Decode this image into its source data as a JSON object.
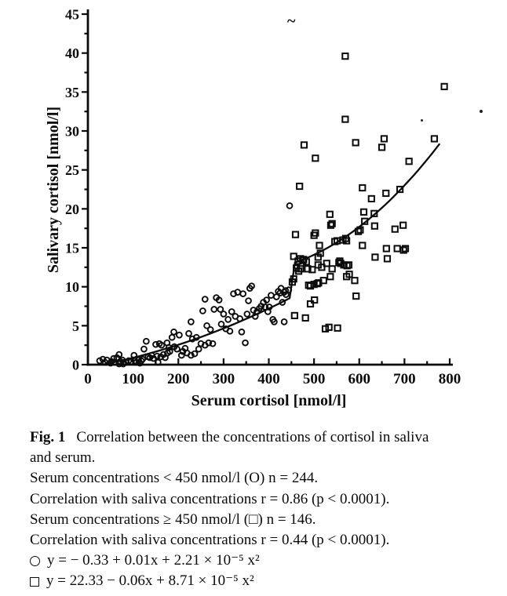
{
  "chart_data": {
    "type": "scatter",
    "title": "",
    "xlabel": "Serum cortisol [nmol/l]",
    "ylabel": "Salivary cortisol [nmol/l]",
    "xlim": [
      0,
      800
    ],
    "ylim": [
      0,
      45
    ],
    "x_major_step": 100,
    "x_minor_step": 50,
    "y_major_step": 5,
    "y_minor_step": 2.5,
    "grid": "off",
    "legend": "none",
    "marker_color": "#0b0b0b",
    "line_color": "#0b0b0b",
    "series": [
      {
        "name": "serum_lt_450",
        "label": "Serum concentrations < 450 nmol/l",
        "marker": "circle",
        "n": 244,
        "r": "0.86",
        "p": "p < 0.0001",
        "points": [
          [
            26,
            0.5
          ],
          [
            33,
            0.7
          ],
          [
            38,
            0.3
          ],
          [
            42,
            0.6
          ],
          [
            50,
            0.2
          ],
          [
            52,
            0.4
          ],
          [
            57,
            0.8
          ],
          [
            60,
            0.3
          ],
          [
            64,
            0.9
          ],
          [
            69,
            1.3
          ],
          [
            69,
            0.1
          ],
          [
            72,
            0.4
          ],
          [
            76,
            0.6
          ],
          [
            78,
            0.1
          ],
          [
            84,
            0.3
          ],
          [
            90,
            0.5
          ],
          [
            96,
            0.4
          ],
          [
            102,
            1.2
          ],
          [
            104,
            0.5
          ],
          [
            107,
            0.3
          ],
          [
            112,
            0.6
          ],
          [
            115,
            0.2
          ],
          [
            118,
            0.5
          ],
          [
            121,
            0.7
          ],
          [
            124,
            2.0
          ],
          [
            129,
            3.0
          ],
          [
            133,
            1.0
          ],
          [
            137,
            0.9
          ],
          [
            141,
            1.2
          ],
          [
            145,
            0.8
          ],
          [
            150,
            2.6
          ],
          [
            153,
            1.1
          ],
          [
            155,
            0.3
          ],
          [
            158,
            2.7
          ],
          [
            161,
            1.0
          ],
          [
            163,
            2.5
          ],
          [
            167,
            1.3
          ],
          [
            171,
            0.9
          ],
          [
            175,
            2.8
          ],
          [
            176,
            1.5
          ],
          [
            179,
            2.2
          ],
          [
            181,
            1.7
          ],
          [
            186,
            3.5
          ],
          [
            190,
            4.2
          ],
          [
            191,
            2.3
          ],
          [
            197,
            2.0
          ],
          [
            202,
            3.8
          ],
          [
            207,
            1.2
          ],
          [
            210,
            1.7
          ],
          [
            215,
            2.1
          ],
          [
            219,
            1.5
          ],
          [
            223,
            4.0
          ],
          [
            228,
            5.5
          ],
          [
            228,
            1.2
          ],
          [
            231,
            3.3
          ],
          [
            236,
            1.4
          ],
          [
            240,
            3.5
          ],
          [
            245,
            2.0
          ],
          [
            250,
            2.7
          ],
          [
            254,
            6.9
          ],
          [
            259,
            8.4
          ],
          [
            259,
            2.5
          ],
          [
            263,
            5.0
          ],
          [
            267,
            2.8
          ],
          [
            271,
            4.5
          ],
          [
            276,
            2.7
          ],
          [
            279,
            7.1
          ],
          [
            284,
            8.6
          ],
          [
            290,
            8.3
          ],
          [
            293,
            7.1
          ],
          [
            295,
            5.2
          ],
          [
            300,
            6.5
          ],
          [
            305,
            4.6
          ],
          [
            310,
            5.8
          ],
          [
            314,
            4.3
          ],
          [
            318,
            6.8
          ],
          [
            322,
            9.1
          ],
          [
            326,
            6.2
          ],
          [
            331,
            9.3
          ],
          [
            336,
            5.9
          ],
          [
            340,
            4.2
          ],
          [
            343,
            9.1
          ],
          [
            348,
            2.8
          ],
          [
            352,
            6.5
          ],
          [
            355,
            8.2
          ],
          [
            358,
            9.8
          ],
          [
            362,
            10.1
          ],
          [
            366,
            7.0
          ],
          [
            370,
            6.2
          ],
          [
            374,
            6.8
          ],
          [
            379,
            7.2
          ],
          [
            383,
            7.5
          ],
          [
            388,
            8.0
          ],
          [
            392,
            7.4
          ],
          [
            395,
            8.3
          ],
          [
            398,
            6.8
          ],
          [
            401,
            7.4
          ],
          [
            405,
            8.9
          ],
          [
            409,
            5.8
          ],
          [
            412,
            5.5
          ],
          [
            417,
            8.7
          ],
          [
            421,
            9.4
          ],
          [
            425,
            9.2
          ],
          [
            427,
            9.8
          ],
          [
            430,
            8.0
          ],
          [
            434,
            5.5
          ],
          [
            434,
            9.3
          ],
          [
            437,
            9.5
          ],
          [
            438,
            9.0
          ],
          [
            444,
            9.6
          ],
          [
            446,
            20.4
          ]
        ]
      },
      {
        "name": "serum_ge_450",
        "label": "Serum concentrations ≥ 450 nmol/l",
        "marker": "square",
        "n": 146,
        "r": "0.44",
        "p": "p < 0.0001",
        "points": [
          [
            452,
            10.6
          ],
          [
            455,
            11.0
          ],
          [
            455,
            13.9
          ],
          [
            457,
            6.3
          ],
          [
            459,
            16.7
          ],
          [
            461,
            12.4
          ],
          [
            465,
            13.3
          ],
          [
            466,
            12.0
          ],
          [
            468,
            22.9
          ],
          [
            470,
            12.3
          ],
          [
            470,
            13.6
          ],
          [
            475,
            13.4
          ],
          [
            477,
            13.5
          ],
          [
            478,
            28.2
          ],
          [
            481,
            6.0
          ],
          [
            483,
            13.2
          ],
          [
            486,
            12.3
          ],
          [
            488,
            10.2
          ],
          [
            492,
            10.1
          ],
          [
            492,
            7.8
          ],
          [
            496,
            12.2
          ],
          [
            500,
            10.3
          ],
          [
            500,
            16.6
          ],
          [
            501,
            8.3
          ],
          [
            503,
            26.5
          ],
          [
            503,
            16.9
          ],
          [
            507,
            10.4
          ],
          [
            509,
            13.8
          ],
          [
            509,
            12.8
          ],
          [
            510,
            10.5
          ],
          [
            512,
            15.3
          ],
          [
            514,
            14.3
          ],
          [
            517,
            12.5
          ],
          [
            521,
            10.8
          ],
          [
            525,
            4.6
          ],
          [
            528,
            13.0
          ],
          [
            533,
            4.8
          ],
          [
            535,
            19.3
          ],
          [
            536,
            11.3
          ],
          [
            537,
            17.9
          ],
          [
            540,
            18.1
          ],
          [
            540,
            12.3
          ],
          [
            546,
            15.8
          ],
          [
            551,
            15.9
          ],
          [
            552,
            4.7
          ],
          [
            555,
            13.1
          ],
          [
            557,
            13.3
          ],
          [
            559,
            13.0
          ],
          [
            564,
            16.0
          ],
          [
            566,
            12.8
          ],
          [
            569,
            39.6
          ],
          [
            569,
            31.5
          ],
          [
            570,
            16.2
          ],
          [
            572,
            15.9
          ],
          [
            572,
            11.3
          ],
          [
            573,
            12.7
          ],
          [
            577,
            12.8
          ],
          [
            578,
            11.6
          ],
          [
            590,
            10.8
          ],
          [
            592,
            28.5
          ],
          [
            593,
            8.8
          ],
          [
            598,
            17.1
          ],
          [
            602,
            17.3
          ],
          [
            607,
            22.7
          ],
          [
            607,
            15.3
          ],
          [
            610,
            19.6
          ],
          [
            612,
            18.4
          ],
          [
            627,
            21.3
          ],
          [
            633,
            19.4
          ],
          [
            634,
            17.8
          ],
          [
            635,
            13.8
          ],
          [
            650,
            27.9
          ],
          [
            655,
            29.0
          ],
          [
            659,
            22.0
          ],
          [
            660,
            14.9
          ],
          [
            662,
            13.6
          ],
          [
            679,
            17.4
          ],
          [
            684,
            14.9
          ],
          [
            690,
            22.5
          ],
          [
            697,
            17.9
          ],
          [
            698,
            14.7
          ],
          [
            702,
            14.9
          ],
          [
            710,
            26.1
          ],
          [
            766,
            29.0
          ],
          [
            788,
            35.7
          ]
        ]
      }
    ],
    "fit_curves": [
      {
        "name": "circle-fit",
        "equation": "y = − 0.33 + 0.01x + 2.21 × 10⁻⁵ x²",
        "coeffs": [
          -0.33,
          0.01,
          2.21e-05
        ],
        "domain": [
          30,
          450
        ]
      },
      {
        "name": "square-fit",
        "equation": "y = 22.33 − 0.06x + 8.71 × 10⁻⁵ x²",
        "coeffs": [
          22.33,
          -0.06,
          8.71e-05
        ],
        "domain": [
          458,
          782
        ]
      }
    ],
    "artifacts": [
      {
        "type": "tilde",
        "x": 366,
        "y": 16
      },
      {
        "type": "dot",
        "x": 611,
        "y": 140,
        "d": 4
      },
      {
        "type": "dot",
        "x": 536,
        "y": 152,
        "d": 3
      }
    ]
  },
  "caption": {
    "fig_label": "Fig. 1",
    "line1": "Correlation between the concentrations of cortisol in saliva",
    "line2": "and serum.",
    "line3": "Serum concentrations < 450 nmol/l (O) n = 244.",
    "line4": "Correlation with saliva concentrations r = 0.86 (p < 0.0001).",
    "line5": "Serum concentrations ≥ 450 nmol/l (□) n = 146.",
    "line6": "Correlation with saliva concentrations r = 0.44 (p < 0.0001).",
    "eq_circle": "y = − 0.33 + 0.01x + 2.21 × 10⁻⁵ x²",
    "eq_square": "y = 22.33 − 0.06x + 8.71 × 10⁻⁵ x²"
  }
}
